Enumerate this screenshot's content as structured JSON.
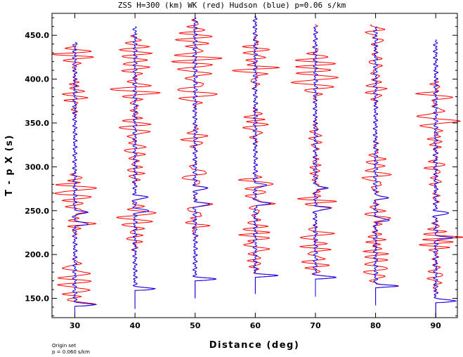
{
  "chart_data": {
    "type": "line",
    "title": "ZSS H=300 (km) WK (red) Hudson (blue) p=0.06 s/km",
    "xlabel": "Distance (deg)",
    "ylabel": "T - p X  (s)",
    "xlim": [
      26.2,
      93.6
    ],
    "ylim": [
      128,
      475
    ],
    "xticks": [
      30,
      40,
      50,
      60,
      70,
      80,
      90
    ],
    "xtick_labels": [
      "30",
      "40",
      "50",
      "60",
      "70",
      "80",
      "90"
    ],
    "yticks": [
      150,
      200,
      250,
      300,
      350,
      400,
      450
    ],
    "ytick_labels": [
      "150.0",
      "200.0",
      "250.0",
      "300.0",
      "350.0",
      "400.0",
      "450.0"
    ],
    "grid": false,
    "legend": "none",
    "series": [
      {
        "name": "WK",
        "color": "#ff0000"
      },
      {
        "name": "Hudson",
        "color": "#0000ff"
      }
    ],
    "traces": [
      {
        "distance": 30,
        "start": 128,
        "blue_end": 442,
        "red_end": 440,
        "onset": 143,
        "amp": 3.5
      },
      {
        "distance": 40,
        "start": 138,
        "blue_end": 460,
        "red_end": 452,
        "onset": 161,
        "amp": 3.4
      },
      {
        "distance": 50,
        "start": 150,
        "blue_end": 470,
        "red_end": 470,
        "onset": 172,
        "amp": 3.5
      },
      {
        "distance": 60,
        "start": 155,
        "blue_end": 472,
        "red_end": 472,
        "onset": 176,
        "amp": 3.5
      },
      {
        "distance": 70,
        "start": 152,
        "blue_end": 460,
        "red_end": 462,
        "onset": 174,
        "amp": 3.5
      },
      {
        "distance": 80,
        "start": 142,
        "blue_end": 460,
        "red_end": 462,
        "onset": 164,
        "amp": 3.5
      },
      {
        "distance": 90,
        "start": 128,
        "blue_end": 445,
        "red_end": 440,
        "onset": 147,
        "amp": 3.6
      }
    ]
  },
  "footer": {
    "line1": "Origin set",
    "line2": "p = 0.060 s/km"
  }
}
